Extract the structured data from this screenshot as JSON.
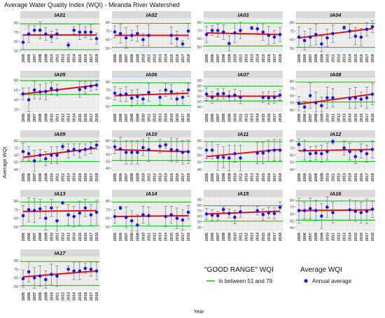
{
  "figure": {
    "title": "Average Water Quality Index (WQI) - Miranda River Watershed",
    "ylabel": "Average WQI",
    "xlabel": "Year"
  },
  "legend": {
    "good_range_title": "\"GOOD RANGE\" WQI",
    "good_range_label": "In between 51 and 79",
    "avg_title": "Average WQI",
    "avg_label": "Annual average"
  },
  "colors": {
    "good_range_line": "#22cc22",
    "trend_line": "#dd1111",
    "points": "#1a1aee",
    "error_bars": "#666666",
    "strip": "#d9d9d9",
    "panel_bg": "#ebebeb",
    "grid": "#ffffff"
  },
  "chart_data": {
    "type": "scatter",
    "years": [
      "2005",
      "2006",
      "2007",
      "2008",
      "2009",
      "2010",
      "2011",
      "2012",
      "2013",
      "2014",
      "2015",
      "2016",
      "2017",
      "2018"
    ],
    "good_range": [
      51,
      79
    ],
    "panels": [
      {
        "name": "IA01",
        "ylim": [
          48,
          85
        ],
        "yticks": [
          50,
          60,
          70,
          80
        ],
        "values": [
          59,
          68,
          72,
          72,
          68,
          65,
          68,
          null,
          56,
          72,
          70,
          70,
          70,
          63
        ],
        "error": [
          8,
          9,
          5,
          9,
          7,
          6,
          5,
          null,
          3,
          4,
          8,
          6,
          8,
          6
        ],
        "trend": [
          67,
          67
        ]
      },
      {
        "name": "IA02",
        "ylim": [
          45,
          85
        ],
        "yticks": [
          50,
          60,
          70,
          80
        ],
        "values": [
          69,
          67,
          62,
          65,
          67,
          60,
          65,
          null,
          null,
          null,
          65,
          61,
          55,
          70
        ],
        "error": [
          7,
          11,
          12,
          6,
          9,
          7,
          12,
          null,
          null,
          null,
          10,
          9,
          4,
          9
        ],
        "trend": [
          65,
          65
        ]
      },
      {
        "name": "IA03",
        "ylim": [
          43,
          85
        ],
        "yticks": [
          50,
          60,
          70,
          80
        ],
        "values": [
          65,
          70,
          70,
          68,
          54,
          67,
          70,
          null,
          73,
          72,
          68,
          64,
          62,
          65
        ],
        "error": [
          10,
          6,
          8,
          9,
          9,
          12,
          10,
          null,
          2,
          7,
          10,
          11,
          8,
          9
        ],
        "trend": [
          67,
          65
        ]
      },
      {
        "name": "IA04",
        "ylim": [
          45,
          85
        ],
        "yticks": [
          50,
          60,
          70,
          80
        ],
        "values": [
          63,
          59,
          63,
          66,
          55,
          62,
          67,
          null,
          74,
          70,
          64,
          63,
          72,
          75
        ],
        "error": [
          12,
          11,
          10,
          12,
          9,
          10,
          10,
          null,
          2,
          8,
          10,
          10,
          8,
          7
        ],
        "trend": [
          62,
          73
        ]
      },
      {
        "name": "IA05",
        "ylim": [
          15,
          85
        ],
        "yticks": [
          20,
          40,
          60,
          80
        ],
        "values": [
          52,
          40,
          60,
          56,
          57,
          63,
          60,
          null,
          null,
          null,
          61,
          65,
          68,
          70
        ],
        "error": [
          12,
          24,
          18,
          15,
          17,
          13,
          12,
          null,
          null,
          null,
          16,
          12,
          10,
          10
        ],
        "trend": [
          52,
          70
        ]
      },
      {
        "name": "IA06",
        "ylim": [
          43,
          85
        ],
        "yticks": [
          50,
          60,
          70,
          80
        ],
        "values": [
          66,
          64,
          65,
          60,
          62,
          59,
          67,
          null,
          61,
          70,
          68,
          59,
          61,
          70
        ],
        "error": [
          8,
          8,
          9,
          10,
          9,
          6,
          11,
          null,
          9,
          8,
          9,
          8,
          8,
          8
        ],
        "trend": [
          63,
          66
        ]
      },
      {
        "name": "IA07",
        "ylim": [
          30,
          95
        ],
        "yticks": [
          40,
          50,
          60,
          70,
          80,
          90
        ],
        "values": [
          64,
          58,
          64,
          65,
          60,
          62,
          58,
          null,
          null,
          null,
          58,
          57,
          58,
          62
        ],
        "error": [
          12,
          11,
          10,
          10,
          10,
          11,
          12,
          null,
          null,
          null,
          10,
          12,
          11,
          10
        ],
        "trend": [
          60,
          60
        ]
      },
      {
        "name": "IA08",
        "ylim": [
          37,
          85
        ],
        "yticks": [
          40,
          50,
          60,
          70,
          80
        ],
        "values": [
          49,
          44,
          60,
          50,
          46,
          57,
          57,
          null,
          null,
          56,
          57,
          55,
          57,
          62
        ],
        "error": [
          10,
          8,
          18,
          15,
          12,
          15,
          13,
          null,
          null,
          14,
          15,
          10,
          15,
          15
        ],
        "trend": [
          48,
          62
        ]
      },
      {
        "name": "IA09",
        "ylim": [
          37,
          85
        ],
        "yticks": [
          40,
          50,
          60,
          70,
          80
        ],
        "values": [
          65,
          62,
          52,
          60,
          55,
          60,
          60,
          72,
          66,
          68,
          66,
          68,
          70,
          74
        ],
        "error": [
          12,
          10,
          15,
          8,
          10,
          12,
          12,
          4,
          10,
          8,
          10,
          8,
          8,
          6
        ],
        "trend": [
          57,
          70
        ]
      },
      {
        "name": "IA10",
        "ylim": [
          35,
          85
        ],
        "yticks": [
          40,
          50,
          60,
          70,
          80
        ],
        "values": [
          71,
          68,
          63,
          63,
          63,
          70,
          67,
          null,
          72,
          74,
          67,
          66,
          63,
          64
        ],
        "error": [
          10,
          17,
          17,
          17,
          17,
          12,
          17,
          null,
          10,
          5,
          17,
          17,
          17,
          17
        ],
        "trend": [
          67,
          64
        ]
      },
      {
        "name": "IA11",
        "ylim": [
          37,
          85
        ],
        "yticks": [
          40,
          50,
          60,
          70,
          80
        ],
        "values": [
          67,
          67,
          57,
          57,
          56,
          62,
          56,
          null,
          null,
          63,
          63,
          66,
          67,
          67
        ],
        "error": [
          12,
          12,
          18,
          15,
          18,
          12,
          18,
          null,
          null,
          15,
          15,
          15,
          15,
          15
        ],
        "trend": [
          58,
          68
        ]
      },
      {
        "name": "IA12",
        "ylim": [
          37,
          85
        ],
        "yticks": [
          40,
          50,
          60,
          70,
          80
        ],
        "values": [
          75,
          67,
          62,
          63,
          62,
          65,
          79,
          null,
          70,
          65,
          58,
          66,
          62,
          68
        ],
        "error": [
          8,
          14,
          10,
          10,
          12,
          12,
          3,
          null,
          10,
          12,
          10,
          10,
          12,
          12
        ],
        "trend": [
          66,
          68
        ]
      },
      {
        "name": "IA13",
        "ylim": [
          45,
          85
        ],
        "yticks": [
          50,
          60,
          70,
          80
        ],
        "values": [
          63,
          70,
          69,
          71,
          60,
          72,
          57,
          78,
          64,
          62,
          66,
          72,
          64,
          67
        ],
        "error": [
          12,
          14,
          14,
          11,
          14,
          10,
          16,
          1,
          12,
          12,
          14,
          10,
          12,
          14
        ],
        "trend": [
          68,
          69
        ]
      },
      {
        "name": "IA14",
        "ylim": [
          45,
          85
        ],
        "yticks": [
          50,
          60,
          70,
          80
        ],
        "values": [
          62,
          72,
          61,
          57,
          52,
          64,
          63,
          null,
          null,
          62,
          64,
          60,
          58,
          67
        ],
        "error": [
          8,
          2,
          12,
          12,
          12,
          10,
          10,
          null,
          null,
          12,
          10,
          12,
          12,
          8
        ],
        "trend": [
          62,
          63
        ]
      },
      {
        "name": "IA15",
        "ylim": [
          33,
          95
        ],
        "yticks": [
          40,
          50,
          60,
          70,
          80,
          90
        ],
        "values": [
          64,
          62,
          61,
          72,
          65,
          58,
          68,
          null,
          null,
          70,
          63,
          66,
          65,
          76
        ],
        "error": [
          10,
          10,
          8,
          5,
          8,
          12,
          10,
          null,
          null,
          8,
          10,
          10,
          10,
          10
        ],
        "trend": [
          64,
          69
        ]
      },
      {
        "name": "IA16",
        "ylim": [
          35,
          85
        ],
        "yticks": [
          40,
          50,
          60,
          70,
          80
        ],
        "values": [
          65,
          65,
          68,
          65,
          57,
          70,
          62,
          null,
          null,
          66,
          64,
          62,
          64,
          67
        ],
        "error": [
          18,
          12,
          15,
          15,
          18,
          15,
          15,
          null,
          null,
          15,
          15,
          15,
          18,
          12
        ],
        "trend": [
          65,
          66
        ]
      },
      {
        "name": "IA17",
        "ylim": [
          45,
          85
        ],
        "yticks": [
          50,
          60,
          70,
          80
        ],
        "values": [
          59,
          67,
          60,
          62,
          58,
          64,
          62,
          null,
          70,
          68,
          68,
          71,
          70,
          68
        ],
        "error": [
          10,
          12,
          12,
          12,
          10,
          12,
          12,
          null,
          4,
          10,
          10,
          6,
          8,
          10
        ],
        "trend": [
          61,
          68
        ]
      }
    ]
  }
}
